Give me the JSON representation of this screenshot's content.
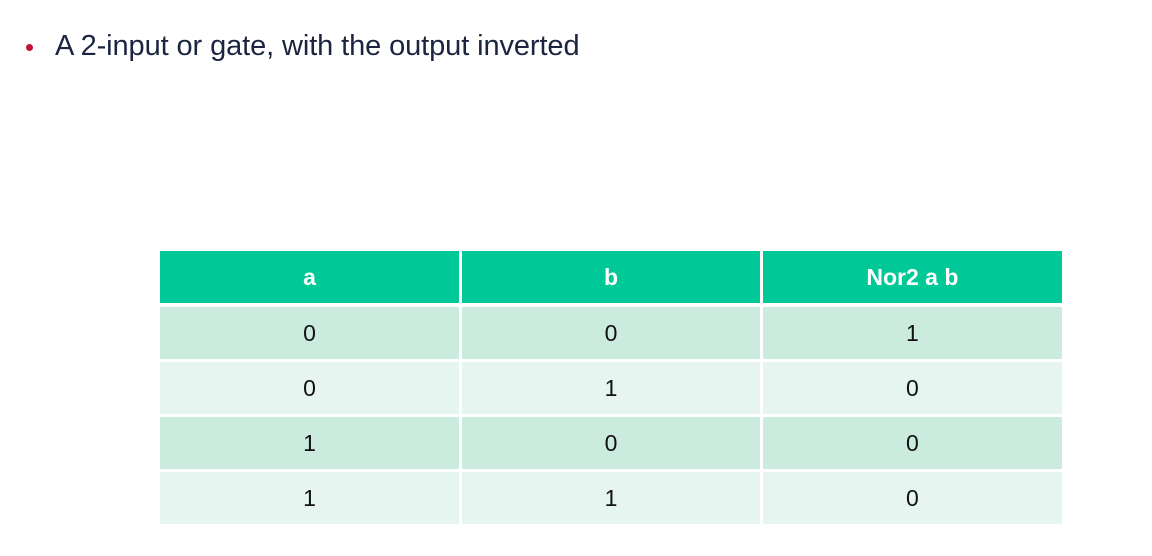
{
  "bullet": {
    "text": "A 2-input or gate, with the output inverted",
    "dot_color": "#c0143c"
  },
  "table": {
    "header_color": "#00c896",
    "headers": [
      "a",
      "b",
      "Nor2 a b"
    ],
    "rows": [
      [
        "0",
        "0",
        "1"
      ],
      [
        "0",
        "1",
        "0"
      ],
      [
        "1",
        "0",
        "0"
      ],
      [
        "1",
        "1",
        "0"
      ]
    ]
  }
}
